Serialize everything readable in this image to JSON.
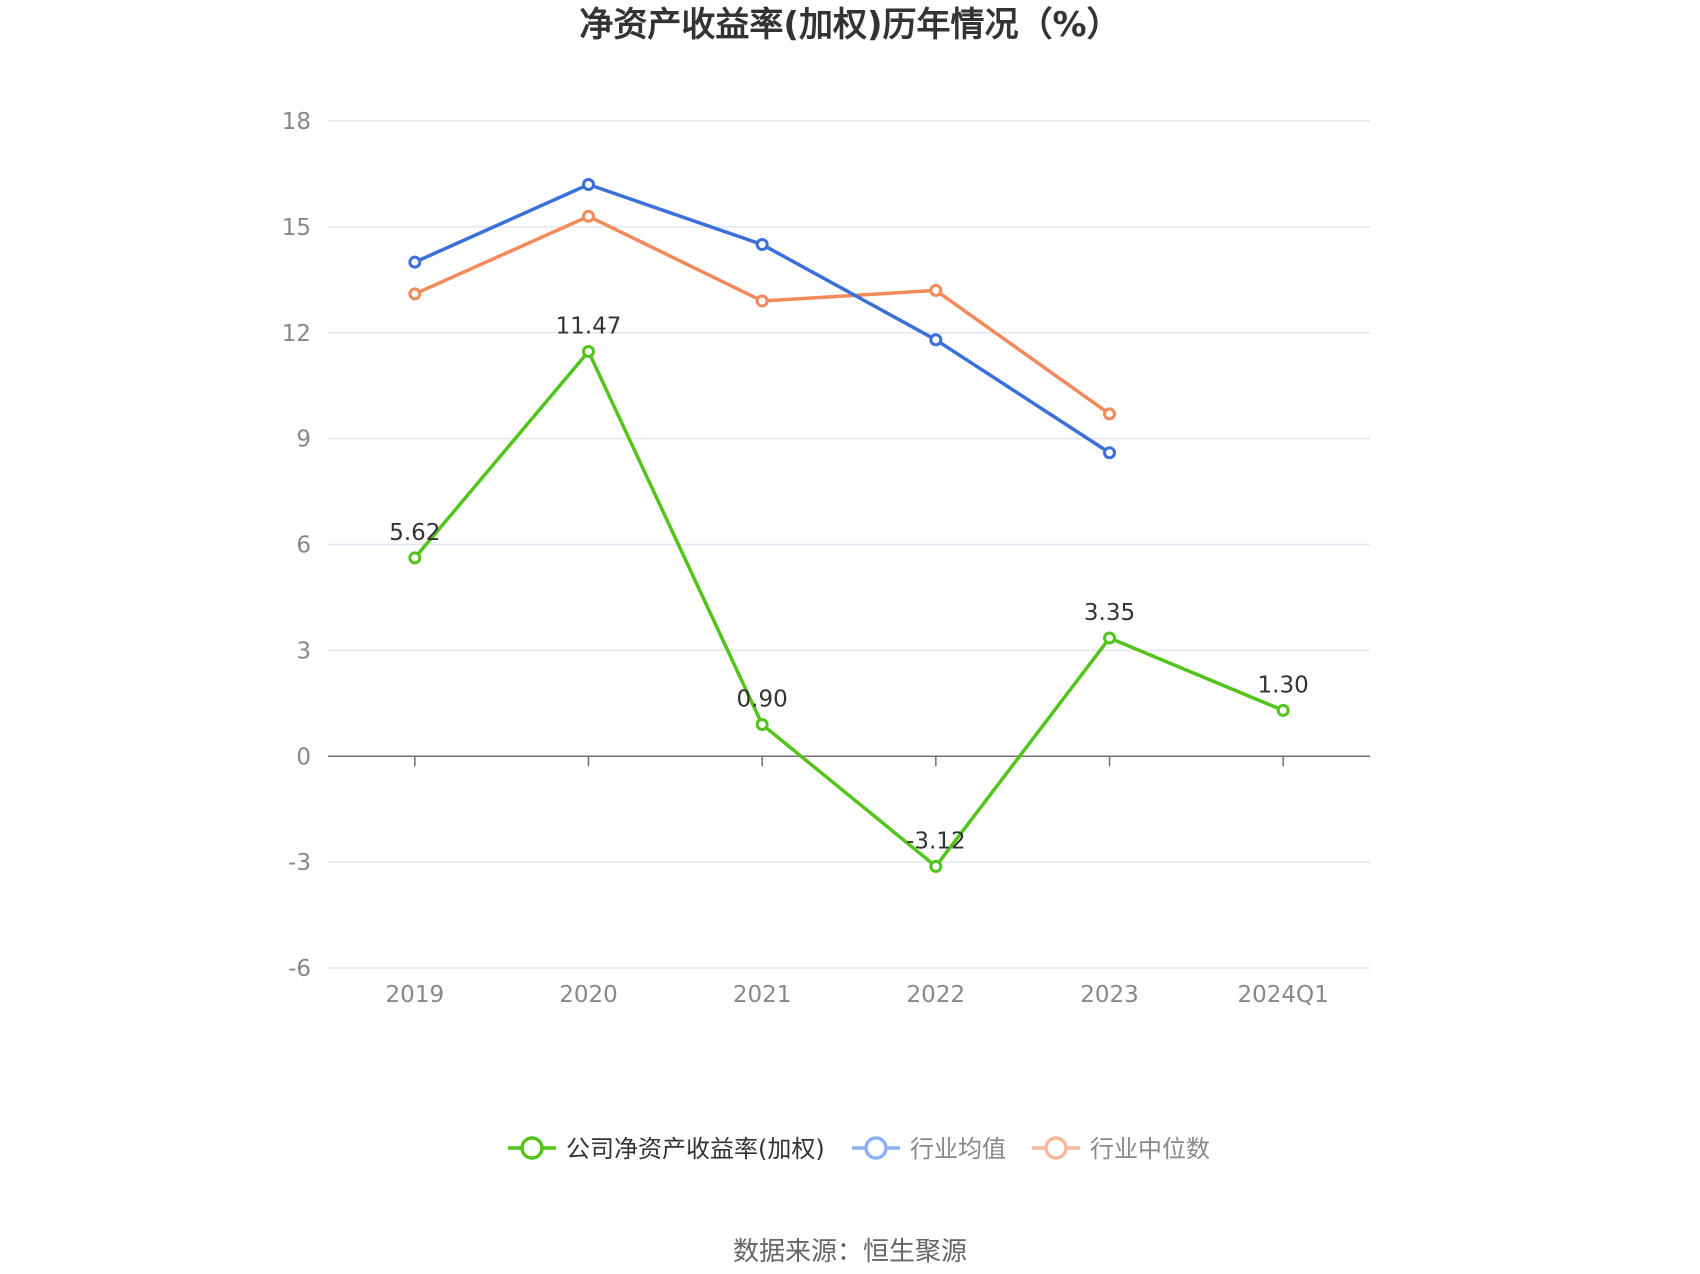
{
  "chart_data": {
    "type": "line",
    "title": "净资产收益率(加权)历年情况（%）",
    "categories": [
      "2019",
      "2020",
      "2021",
      "2022",
      "2023",
      "2024Q1"
    ],
    "ylim": [
      -6,
      18
    ],
    "yticks": [
      18,
      15,
      12,
      9,
      6,
      3,
      0,
      -3,
      -6
    ],
    "grid": true,
    "legend_position": "bottom",
    "series": [
      {
        "name": "公司净资产收益率(加权)",
        "color": "#52c41a",
        "values": [
          5.62,
          11.47,
          0.9,
          -3.12,
          3.35,
          1.3
        ],
        "labels": [
          "5.62",
          "11.47",
          "0.90",
          "-3.12",
          "3.35",
          "1.30"
        ]
      },
      {
        "name": "行业均值",
        "color": "#3b6fdc",
        "values": [
          14.0,
          16.2,
          14.5,
          11.8,
          8.6,
          null
        ]
      },
      {
        "name": "行业中位数",
        "color": "#f4895a",
        "values": [
          13.1,
          15.3,
          12.9,
          13.2,
          9.7,
          null
        ]
      }
    ],
    "legend_colors": [
      "#52c41a",
      "#8eb0ee",
      "#f7b99c"
    ],
    "legend_text_colors": [
      "#333333",
      "#888888",
      "#888888"
    ],
    "source": "数据来源：恒生聚源"
  }
}
